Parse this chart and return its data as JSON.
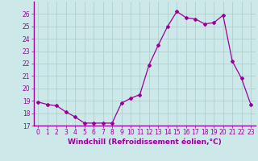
{
  "x": [
    0,
    1,
    2,
    3,
    4,
    5,
    6,
    7,
    8,
    9,
    10,
    11,
    12,
    13,
    14,
    15,
    16,
    17,
    18,
    19,
    20,
    21,
    22,
    23
  ],
  "y": [
    18.9,
    18.7,
    18.6,
    18.1,
    17.7,
    17.2,
    17.2,
    17.2,
    17.2,
    18.8,
    19.2,
    19.5,
    21.9,
    23.5,
    25.0,
    26.2,
    25.7,
    25.6,
    25.2,
    25.3,
    25.9,
    22.2,
    20.8,
    18.7
  ],
  "line_color": "#990099",
  "marker": "D",
  "markersize": 2.0,
  "linewidth": 0.9,
  "xlabel": "Windchill (Refroidissement éolien,°C)",
  "xlabel_fontsize": 6.5,
  "ylim": [
    17,
    27
  ],
  "xlim": [
    -0.5,
    23.5
  ],
  "yticks": [
    17,
    18,
    19,
    20,
    21,
    22,
    23,
    24,
    25,
    26
  ],
  "xticks": [
    0,
    1,
    2,
    3,
    4,
    5,
    6,
    7,
    8,
    9,
    10,
    11,
    12,
    13,
    14,
    15,
    16,
    17,
    18,
    19,
    20,
    21,
    22,
    23
  ],
  "background_color": "#cce8e8",
  "grid_color": "#aacccc",
  "tick_fontsize": 5.5,
  "tick_color": "#990099",
  "label_color": "#990099"
}
